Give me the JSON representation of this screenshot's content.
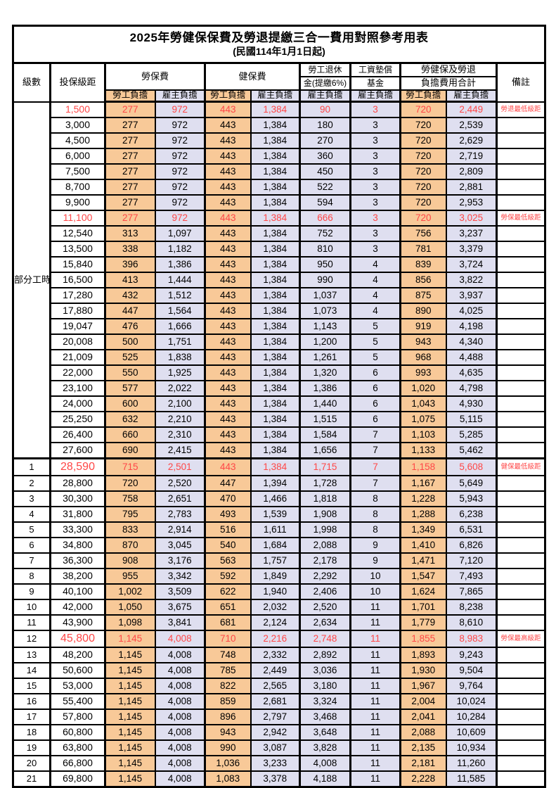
{
  "title": "2025年勞健保保費及勞退提繳三合一費用對照參考用表",
  "subtitle": "(民國114年1月1日起)",
  "colors": {
    "employee_fill": "#F8C998",
    "employer_fill": "#DFDFF0",
    "highlight_text": "#FF4747",
    "border": "#000000"
  },
  "table": {
    "header": {
      "level": "級數",
      "bracket": "投保級距",
      "labor_ins": "勞保費",
      "health_ins": "健保費",
      "pension_l1": "勞工退休",
      "pension_l2": "金(提繳6%)",
      "fund_l1": "工資墊償",
      "fund_l2": "基金",
      "total_l1": "勞健保及勞退",
      "total_l2": "負擔費用合計",
      "remark": "備註",
      "employee": "勞工負擔",
      "employer": "雇主負擔"
    },
    "part_time_label": "部分工時",
    "part_time_span": 23,
    "rows": [
      {
        "level": "",
        "bracket": "1,500",
        "v": [
          "277",
          "972",
          "443",
          "1,384",
          "90",
          "3",
          "720",
          "2,449"
        ],
        "remark": "勞退最低級距",
        "hl": true,
        "big": false
      },
      {
        "level": "",
        "bracket": "3,000",
        "v": [
          "277",
          "972",
          "443",
          "1,384",
          "180",
          "3",
          "720",
          "2,539"
        ],
        "remark": "",
        "hl": false,
        "big": false
      },
      {
        "level": "",
        "bracket": "4,500",
        "v": [
          "277",
          "972",
          "443",
          "1,384",
          "270",
          "3",
          "720",
          "2,629"
        ],
        "remark": "",
        "hl": false,
        "big": false
      },
      {
        "level": "",
        "bracket": "6,000",
        "v": [
          "277",
          "972",
          "443",
          "1,384",
          "360",
          "3",
          "720",
          "2,719"
        ],
        "remark": "",
        "hl": false,
        "big": false
      },
      {
        "level": "",
        "bracket": "7,500",
        "v": [
          "277",
          "972",
          "443",
          "1,384",
          "450",
          "3",
          "720",
          "2,809"
        ],
        "remark": "",
        "hl": false,
        "big": false
      },
      {
        "level": "",
        "bracket": "8,700",
        "v": [
          "277",
          "972",
          "443",
          "1,384",
          "522",
          "3",
          "720",
          "2,881"
        ],
        "remark": "",
        "hl": false,
        "big": false
      },
      {
        "level": "",
        "bracket": "9,900",
        "v": [
          "277",
          "972",
          "443",
          "1,384",
          "594",
          "3",
          "720",
          "2,953"
        ],
        "remark": "",
        "hl": false,
        "big": false
      },
      {
        "level": "",
        "bracket": "11,100",
        "v": [
          "277",
          "972",
          "443",
          "1,384",
          "666",
          "3",
          "720",
          "3,025"
        ],
        "remark": "勞保最低級距",
        "hl": true,
        "big": false
      },
      {
        "level": "",
        "bracket": "12,540",
        "v": [
          "313",
          "1,097",
          "443",
          "1,384",
          "752",
          "3",
          "756",
          "3,237"
        ],
        "remark": "",
        "hl": false,
        "big": false
      },
      {
        "level": "",
        "bracket": "13,500",
        "v": [
          "338",
          "1,182",
          "443",
          "1,384",
          "810",
          "3",
          "781",
          "3,379"
        ],
        "remark": "",
        "hl": false,
        "big": false
      },
      {
        "level": "",
        "bracket": "15,840",
        "v": [
          "396",
          "1,386",
          "443",
          "1,384",
          "950",
          "4",
          "839",
          "3,724"
        ],
        "remark": "",
        "hl": false,
        "big": false
      },
      {
        "level": "",
        "bracket": "16,500",
        "v": [
          "413",
          "1,444",
          "443",
          "1,384",
          "990",
          "4",
          "856",
          "3,822"
        ],
        "remark": "",
        "hl": false,
        "big": false
      },
      {
        "level": "",
        "bracket": "17,280",
        "v": [
          "432",
          "1,512",
          "443",
          "1,384",
          "1,037",
          "4",
          "875",
          "3,937"
        ],
        "remark": "",
        "hl": false,
        "big": false
      },
      {
        "level": "",
        "bracket": "17,880",
        "v": [
          "447",
          "1,564",
          "443",
          "1,384",
          "1,073",
          "4",
          "890",
          "4,025"
        ],
        "remark": "",
        "hl": false,
        "big": false
      },
      {
        "level": "",
        "bracket": "19,047",
        "v": [
          "476",
          "1,666",
          "443",
          "1,384",
          "1,143",
          "5",
          "919",
          "4,198"
        ],
        "remark": "",
        "hl": false,
        "big": false
      },
      {
        "level": "",
        "bracket": "20,008",
        "v": [
          "500",
          "1,751",
          "443",
          "1,384",
          "1,200",
          "5",
          "943",
          "4,340"
        ],
        "remark": "",
        "hl": false,
        "big": false
      },
      {
        "level": "",
        "bracket": "21,009",
        "v": [
          "525",
          "1,838",
          "443",
          "1,384",
          "1,261",
          "5",
          "968",
          "4,488"
        ],
        "remark": "",
        "hl": false,
        "big": false
      },
      {
        "level": "",
        "bracket": "22,000",
        "v": [
          "550",
          "1,925",
          "443",
          "1,384",
          "1,320",
          "6",
          "993",
          "4,635"
        ],
        "remark": "",
        "hl": false,
        "big": false
      },
      {
        "level": "",
        "bracket": "23,100",
        "v": [
          "577",
          "2,022",
          "443",
          "1,384",
          "1,386",
          "6",
          "1,020",
          "4,798"
        ],
        "remark": "",
        "hl": false,
        "big": false
      },
      {
        "level": "",
        "bracket": "24,000",
        "v": [
          "600",
          "2,100",
          "443",
          "1,384",
          "1,440",
          "6",
          "1,043",
          "4,930"
        ],
        "remark": "",
        "hl": false,
        "big": false
      },
      {
        "level": "",
        "bracket": "25,250",
        "v": [
          "632",
          "2,210",
          "443",
          "1,384",
          "1,515",
          "6",
          "1,075",
          "5,115"
        ],
        "remark": "",
        "hl": false,
        "big": false
      },
      {
        "level": "",
        "bracket": "26,400",
        "v": [
          "660",
          "2,310",
          "443",
          "1,384",
          "1,584",
          "7",
          "1,103",
          "5,285"
        ],
        "remark": "",
        "hl": false,
        "big": false
      },
      {
        "level": "",
        "bracket": "27,600",
        "v": [
          "690",
          "2,415",
          "443",
          "1,384",
          "1,656",
          "7",
          "1,133",
          "5,462"
        ],
        "remark": "",
        "hl": false,
        "big": false
      },
      {
        "level": "1",
        "bracket": "28,590",
        "v": [
          "715",
          "2,501",
          "443",
          "1,384",
          "1,715",
          "7",
          "1,158",
          "5,608"
        ],
        "remark": "健保最低級距",
        "hl": true,
        "big": true
      },
      {
        "level": "2",
        "bracket": "28,800",
        "v": [
          "720",
          "2,520",
          "447",
          "1,394",
          "1,728",
          "7",
          "1,167",
          "5,649"
        ],
        "remark": "",
        "hl": false,
        "big": false
      },
      {
        "level": "3",
        "bracket": "30,300",
        "v": [
          "758",
          "2,651",
          "470",
          "1,466",
          "1,818",
          "8",
          "1,228",
          "5,943"
        ],
        "remark": "",
        "hl": false,
        "big": false
      },
      {
        "level": "4",
        "bracket": "31,800",
        "v": [
          "795",
          "2,783",
          "493",
          "1,539",
          "1,908",
          "8",
          "1,288",
          "6,238"
        ],
        "remark": "",
        "hl": false,
        "big": false
      },
      {
        "level": "5",
        "bracket": "33,300",
        "v": [
          "833",
          "2,914",
          "516",
          "1,611",
          "1,998",
          "8",
          "1,349",
          "6,531"
        ],
        "remark": "",
        "hl": false,
        "big": false
      },
      {
        "level": "6",
        "bracket": "34,800",
        "v": [
          "870",
          "3,045",
          "540",
          "1,684",
          "2,088",
          "9",
          "1,410",
          "6,826"
        ],
        "remark": "",
        "hl": false,
        "big": false
      },
      {
        "level": "7",
        "bracket": "36,300",
        "v": [
          "908",
          "3,176",
          "563",
          "1,757",
          "2,178",
          "9",
          "1,471",
          "7,120"
        ],
        "remark": "",
        "hl": false,
        "big": false
      },
      {
        "level": "8",
        "bracket": "38,200",
        "v": [
          "955",
          "3,342",
          "592",
          "1,849",
          "2,292",
          "10",
          "1,547",
          "7,493"
        ],
        "remark": "",
        "hl": false,
        "big": false
      },
      {
        "level": "9",
        "bracket": "40,100",
        "v": [
          "1,002",
          "3,509",
          "622",
          "1,940",
          "2,406",
          "10",
          "1,624",
          "7,865"
        ],
        "remark": "",
        "hl": false,
        "big": false
      },
      {
        "level": "10",
        "bracket": "42,000",
        "v": [
          "1,050",
          "3,675",
          "651",
          "2,032",
          "2,520",
          "11",
          "1,701",
          "8,238"
        ],
        "remark": "",
        "hl": false,
        "big": false
      },
      {
        "level": "11",
        "bracket": "43,900",
        "v": [
          "1,098",
          "3,841",
          "681",
          "2,124",
          "2,634",
          "11",
          "1,779",
          "8,610"
        ],
        "remark": "",
        "hl": false,
        "big": false
      },
      {
        "level": "12",
        "bracket": "45,800",
        "v": [
          "1,145",
          "4,008",
          "710",
          "2,216",
          "2,748",
          "11",
          "1,855",
          "8,983"
        ],
        "remark": "勞保最高級距",
        "hl": true,
        "big": true
      },
      {
        "level": "13",
        "bracket": "48,200",
        "v": [
          "1,145",
          "4,008",
          "748",
          "2,332",
          "2,892",
          "11",
          "1,893",
          "9,243"
        ],
        "remark": "",
        "hl": false,
        "big": false
      },
      {
        "level": "14",
        "bracket": "50,600",
        "v": [
          "1,145",
          "4,008",
          "785",
          "2,449",
          "3,036",
          "11",
          "1,930",
          "9,504"
        ],
        "remark": "",
        "hl": false,
        "big": false
      },
      {
        "level": "15",
        "bracket": "53,000",
        "v": [
          "1,145",
          "4,008",
          "822",
          "2,565",
          "3,180",
          "11",
          "1,967",
          "9,764"
        ],
        "remark": "",
        "hl": false,
        "big": false
      },
      {
        "level": "16",
        "bracket": "55,400",
        "v": [
          "1,145",
          "4,008",
          "859",
          "2,681",
          "3,324",
          "11",
          "2,004",
          "10,024"
        ],
        "remark": "",
        "hl": false,
        "big": false
      },
      {
        "level": "17",
        "bracket": "57,800",
        "v": [
          "1,145",
          "4,008",
          "896",
          "2,797",
          "3,468",
          "11",
          "2,041",
          "10,284"
        ],
        "remark": "",
        "hl": false,
        "big": false
      },
      {
        "level": "18",
        "bracket": "60,800",
        "v": [
          "1,145",
          "4,008",
          "943",
          "2,942",
          "3,648",
          "11",
          "2,088",
          "10,609"
        ],
        "remark": "",
        "hl": false,
        "big": false
      },
      {
        "level": "19",
        "bracket": "63,800",
        "v": [
          "1,145",
          "4,008",
          "990",
          "3,087",
          "3,828",
          "11",
          "2,135",
          "10,934"
        ],
        "remark": "",
        "hl": false,
        "big": false
      },
      {
        "level": "20",
        "bracket": "66,800",
        "v": [
          "1,145",
          "4,008",
          "1,036",
          "3,233",
          "4,008",
          "11",
          "2,181",
          "11,260"
        ],
        "remark": "",
        "hl": false,
        "big": false
      },
      {
        "level": "21",
        "bracket": "69,800",
        "v": [
          "1,145",
          "4,008",
          "1,083",
          "3,378",
          "4,188",
          "11",
          "2,228",
          "11,585"
        ],
        "remark": "",
        "hl": false,
        "big": false
      }
    ]
  }
}
